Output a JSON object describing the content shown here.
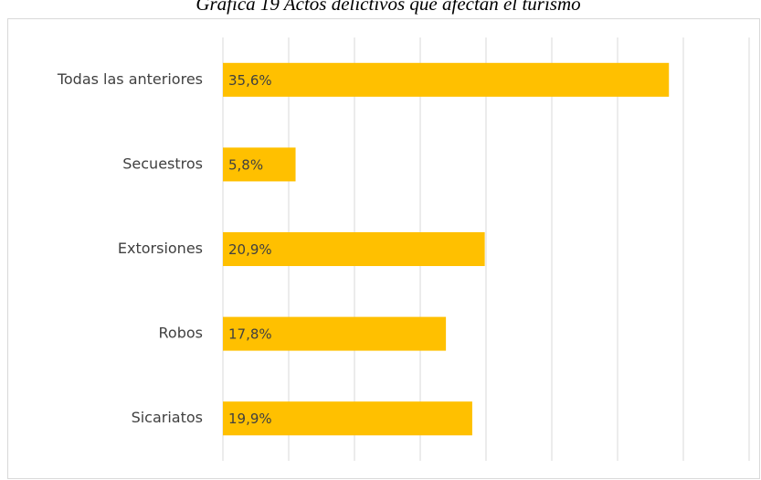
{
  "chart_data": {
    "type": "bar",
    "orientation": "horizontal",
    "title": "Gráfica 19 Actos delictivos que afectan el turismo",
    "categories": [
      "Todas las anteriores",
      "Secuestros",
      "Extorsiones",
      "Robos",
      "Sicariatos"
    ],
    "values": [
      35.6,
      5.8,
      20.9,
      17.8,
      19.9
    ],
    "value_labels": [
      "35,6%",
      "5,8%",
      "20,9%",
      "17,8%",
      "19,9%"
    ],
    "color": "#ffc000",
    "xlim": [
      0,
      42
    ],
    "xticks": [
      0,
      5.25,
      10.5,
      15.75,
      21,
      26.25,
      31.5,
      36.75,
      42
    ],
    "grid": true
  }
}
